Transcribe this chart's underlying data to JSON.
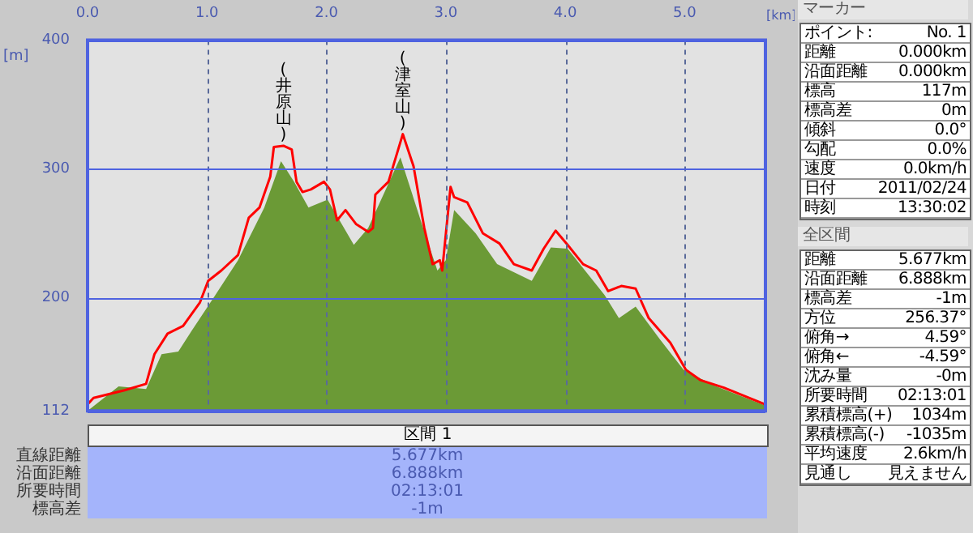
{
  "chart_data": {
    "type": "line",
    "xlabel": "[km]",
    "ylabel": "[m]",
    "xlim": [
      0,
      5.677
    ],
    "xticks": [
      {
        "value": 0,
        "label": "0.0"
      },
      {
        "value": 1,
        "label": "1.0"
      },
      {
        "value": 2,
        "label": "2.0"
      },
      {
        "value": 3,
        "label": "3.0"
      },
      {
        "value": 4,
        "label": "4.0"
      },
      {
        "value": 5,
        "label": "5.0"
      }
    ],
    "ylim": [
      112,
      400
    ],
    "yticks": [
      112,
      200,
      300,
      400
    ],
    "grid": true,
    "legend": false,
    "series": [
      {
        "type": "area",
        "color": "#6b9a36",
        "x": [
          0,
          0.26,
          0.49,
          0.62,
          0.76,
          0.87,
          1.07,
          1.26,
          1.48,
          1.62,
          1.73,
          1.85,
          2.01,
          2.23,
          2.35,
          2.62,
          2.8,
          2.93,
          3.0,
          3.07,
          3.25,
          3.43,
          3.72,
          3.88,
          4.02,
          4.33,
          4.45,
          4.59,
          4.79,
          4.99,
          5.24,
          5.677
        ],
        "values": [
          112,
          131,
          129,
          156,
          158,
          174,
          202,
          229,
          270,
          306,
          290,
          270,
          276,
          241,
          254,
          309,
          257,
          221,
          229,
          268,
          250,
          226,
          213,
          239,
          238,
          202,
          184,
          193,
          168,
          144,
          132,
          116
        ]
      },
      {
        "type": "line",
        "color": "#ff0000",
        "x": [
          0,
          0.05,
          0.31,
          0.49,
          0.56,
          0.67,
          0.8,
          0.94,
          1.01,
          1.12,
          1.26,
          1.35,
          1.44,
          1.53,
          1.56,
          1.64,
          1.71,
          1.75,
          1.8,
          1.87,
          1.98,
          2.03,
          2.09,
          2.16,
          2.25,
          2.35,
          2.39,
          2.41,
          2.52,
          2.64,
          2.73,
          2.82,
          2.89,
          2.95,
          2.97,
          3.04,
          3.07,
          3.18,
          3.31,
          3.45,
          3.57,
          3.72,
          3.82,
          3.92,
          4.02,
          4.15,
          4.26,
          4.36,
          4.47,
          4.59,
          4.7,
          4.88,
          5.01,
          5.13,
          5.33,
          5.677
        ],
        "values": [
          117,
          122,
          128,
          133,
          156,
          172,
          178,
          196,
          213,
          221,
          233,
          262,
          270,
          294,
          317,
          318,
          315,
          290,
          282,
          284,
          290,
          284,
          260,
          268,
          257,
          251,
          254,
          280,
          290,
          327,
          302,
          254,
          226,
          229,
          221,
          286,
          278,
          274,
          250,
          242,
          226,
          221,
          238,
          252,
          241,
          226,
          221,
          205,
          209,
          207,
          184,
          165,
          144,
          136,
          130,
          117
        ]
      }
    ],
    "annotations": [
      {
        "text": "(井原山)",
        "x": 1.64,
        "y": 318
      },
      {
        "text": "(津室山)",
        "x": 2.64,
        "y": 327
      },
      "マーカー",
      "ポイント:",
      "No. 1",
      "距離",
      "0.000km",
      "沿面距離",
      "0.000km",
      "標高",
      "117m",
      "標高差",
      "0m",
      "傾斜",
      "0.0°",
      "勾配",
      "0.0%",
      "速度",
      "0.0km/h",
      "日付",
      "2011/02/24",
      "時刻",
      "13:30:02",
      "全区間",
      "距離",
      "5.677km",
      "沿面距離",
      "6.888km",
      "標高差",
      "-1m",
      "方位",
      "256.37°",
      "俯角→",
      "4.59°",
      "俯角←",
      "-4.59°",
      "沈み量",
      "-0m",
      "所要時間",
      "02:13:01",
      "累積標高(+)",
      "1034m",
      "累積標高(-)",
      "-1035m",
      "平均速度",
      "2.6km/h",
      "見通し",
      "見えません",
      "区間 1",
      "直線距離",
      "5.677km",
      "沿面距離",
      "6.888km",
      "所要時間",
      "02:13:01",
      "標高差",
      "-1m"
    ]
  }
}
